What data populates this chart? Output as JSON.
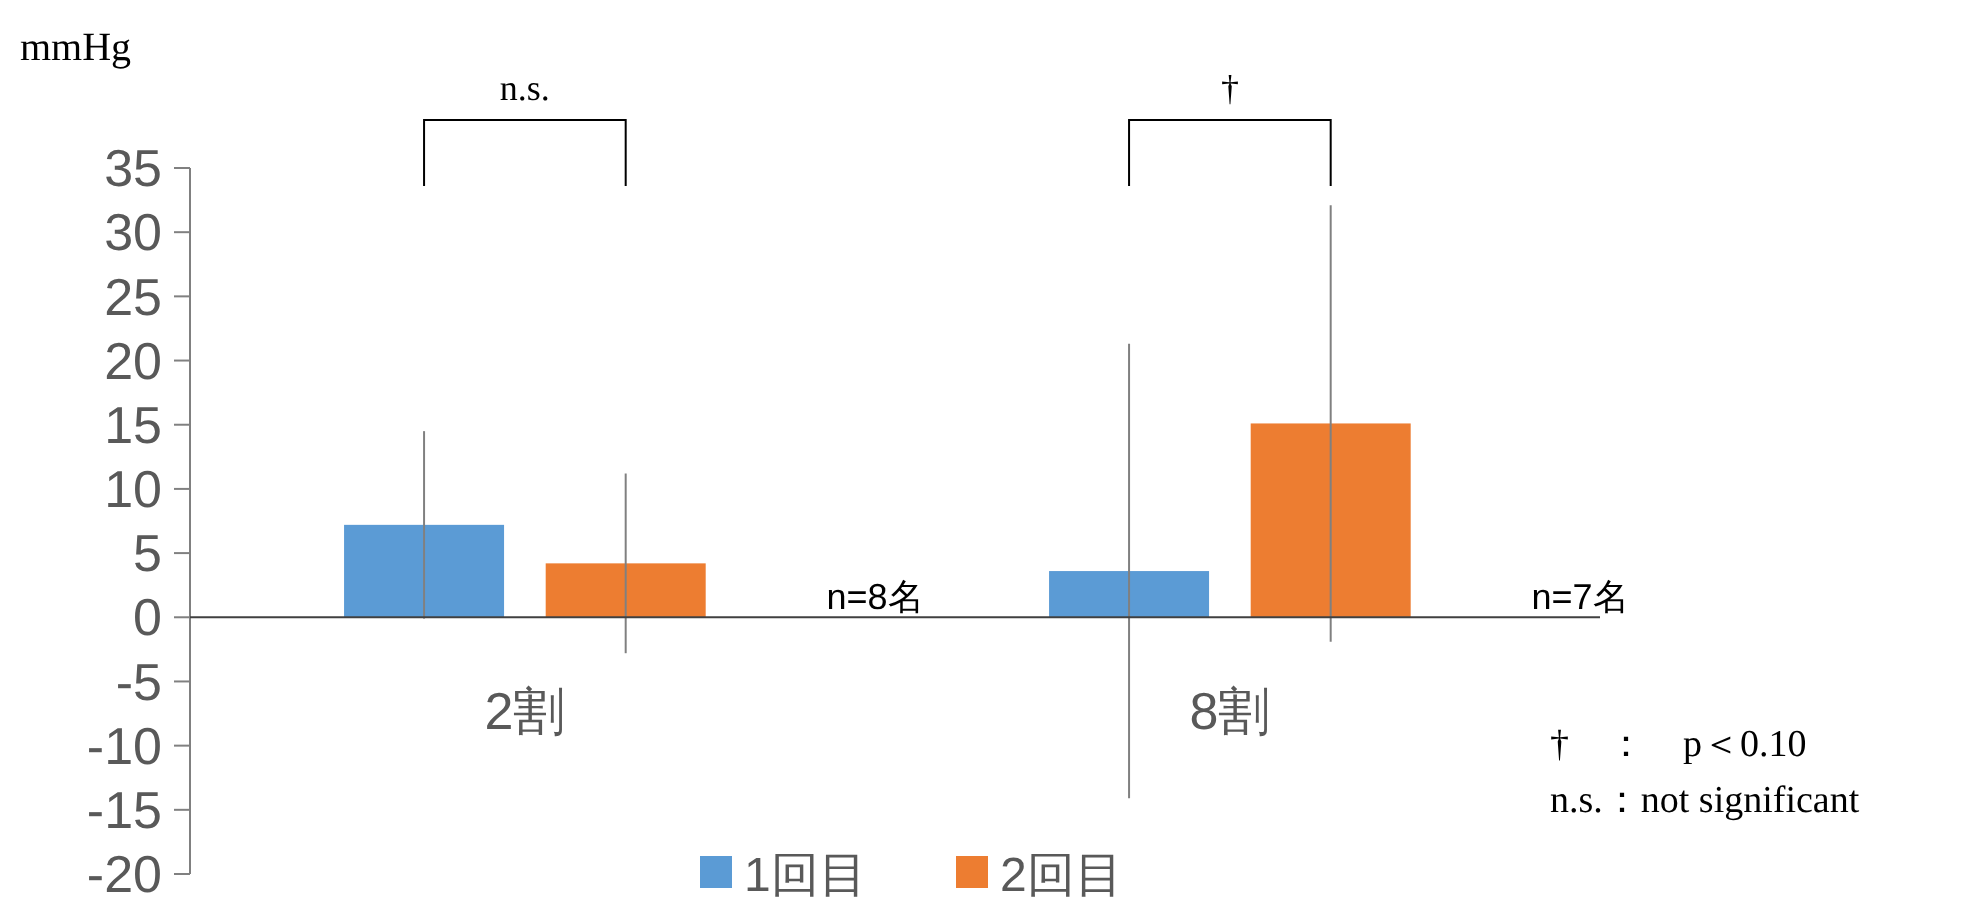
{
  "chart_data": {
    "type": "bar",
    "ylabel": "mmHg",
    "categories": [
      "2割",
      "8割"
    ],
    "series": [
      {
        "name": "1回目",
        "color": "#5b9bd5",
        "values": [
          7.2,
          3.6
        ],
        "errors": [
          7.3,
          17.7
        ]
      },
      {
        "name": "2回目",
        "color": "#ed7d31",
        "values": [
          4.2,
          15.1
        ],
        "errors": [
          7,
          17
        ]
      }
    ],
    "ylim": [
      -20,
      35
    ],
    "yticks": [
      -20,
      -15,
      -10,
      -5,
      0,
      5,
      10,
      15,
      20,
      25,
      30,
      35
    ],
    "grid": false,
    "legend": "bottom",
    "annotations": [
      "n.s.",
      "†",
      "n=8名",
      "n=7名",
      "†　：　p＜0.10",
      "n.s.：not significant"
    ]
  }
}
